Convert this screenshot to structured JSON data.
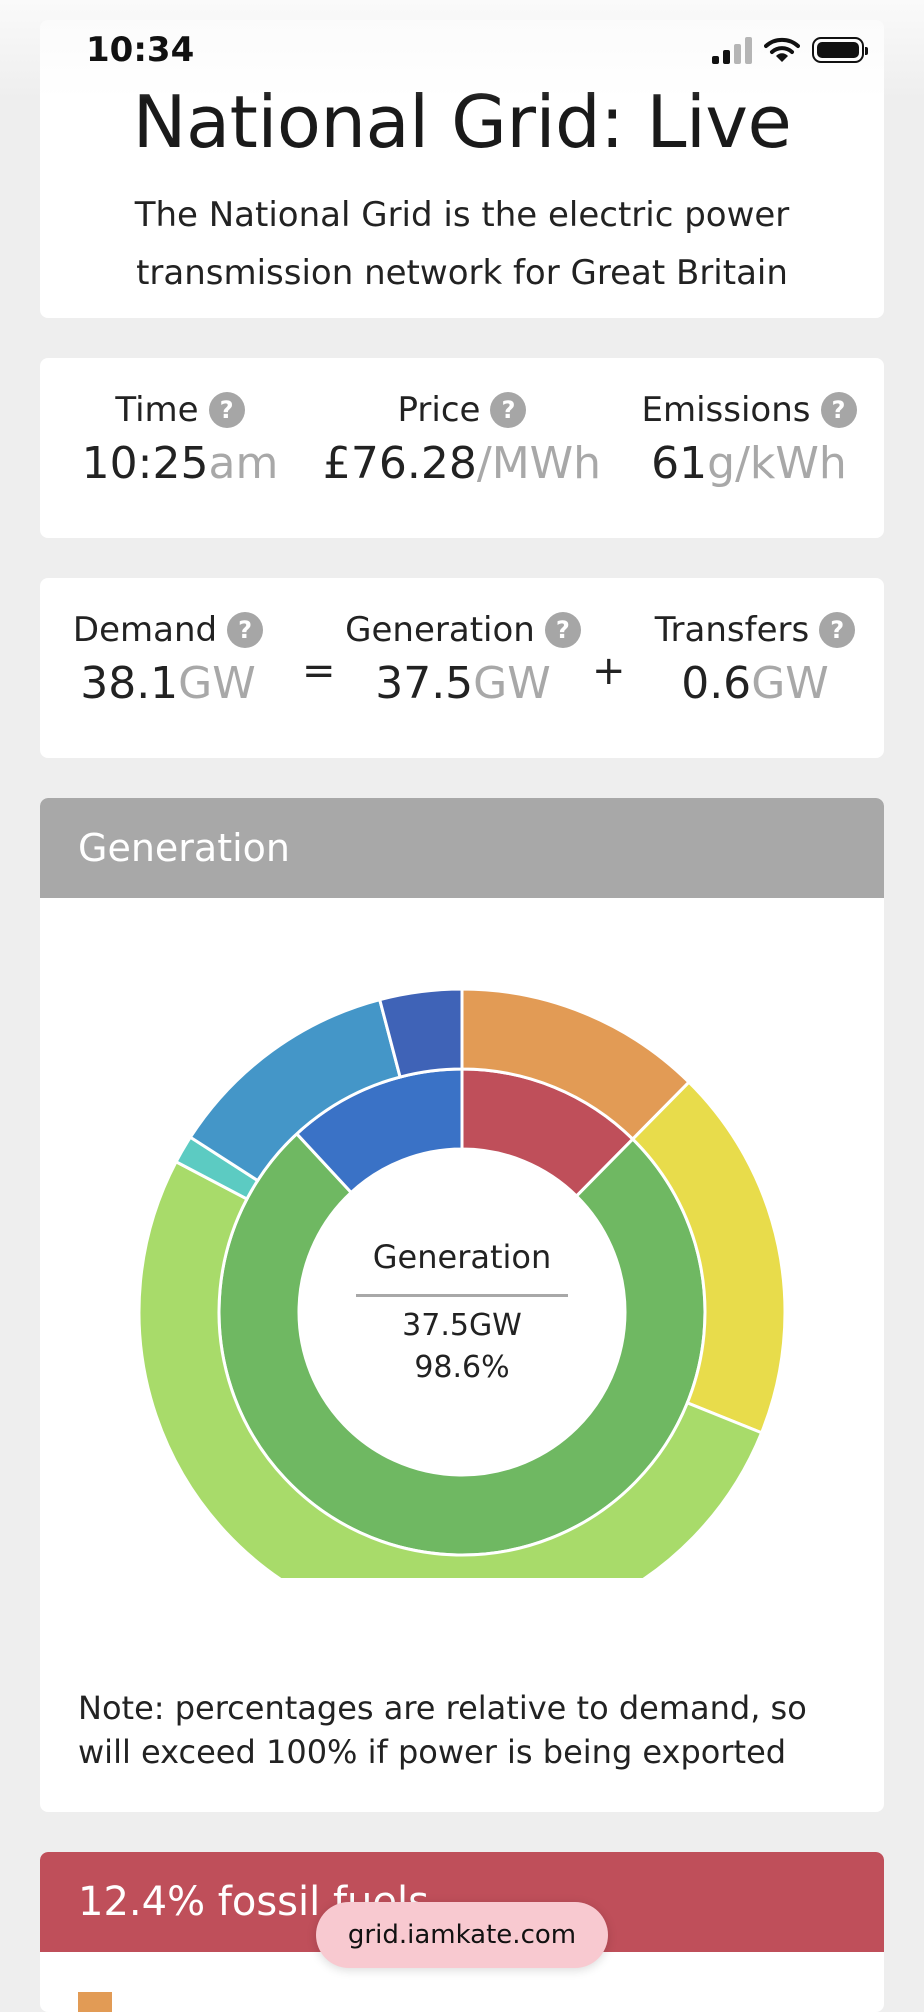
{
  "status_bar": {
    "time": "10:34"
  },
  "header": {
    "title": "National Grid: Live",
    "subtitle": "The National Grid is the electric power transmission network for Great Britain"
  },
  "summary": {
    "time": {
      "label": "Time",
      "value": "10:25",
      "unit": "am"
    },
    "price": {
      "label": "Price",
      "value": "£76.28",
      "unit": "/MWh"
    },
    "emissions": {
      "label": "Emissions",
      "value": "61",
      "unit": "g/kWh"
    }
  },
  "balance": {
    "demand": {
      "label": "Demand",
      "value": "38.1",
      "unit": "GW"
    },
    "equals": "=",
    "generation": {
      "label": "Generation",
      "value": "37.5",
      "unit": "GW"
    },
    "plus": "+",
    "transfers": {
      "label": "Transfers",
      "value": "0.6",
      "unit": "GW"
    }
  },
  "help_glyph": "?",
  "generation_panel": {
    "header": "Generation",
    "center_title": "Generation",
    "center_value": "37.5GW",
    "center_percent": "98.6%",
    "note": "Note: percentages are relative to demand, so will exceed 100% if power is being exported"
  },
  "chart_data": {
    "type": "pie",
    "rings": [
      {
        "name": "inner",
        "slices": [
          {
            "value": 12.4,
            "color": "#bf4f5a"
          },
          {
            "value": 75.7,
            "color": "#6fb862"
          },
          {
            "value": 11.9,
            "color": "#3a72c6"
          }
        ]
      },
      {
        "name": "outer",
        "slices": [
          {
            "value": 12.4,
            "color": "#e29b55"
          },
          {
            "value": 18.7,
            "color": "#e8dc4b"
          },
          {
            "value": 51.6,
            "color": "#a8db6a"
          },
          {
            "value": 1.4,
            "color": "#5ccbc2"
          },
          {
            "value": 11.8,
            "color": "#4496c8"
          },
          {
            "value": 4.1,
            "color": "#3f63b7"
          }
        ]
      }
    ]
  },
  "fossil_panel": {
    "header": "12.4% fossil fuels"
  },
  "url_bar": {
    "url": "grid.iamkate.com"
  }
}
